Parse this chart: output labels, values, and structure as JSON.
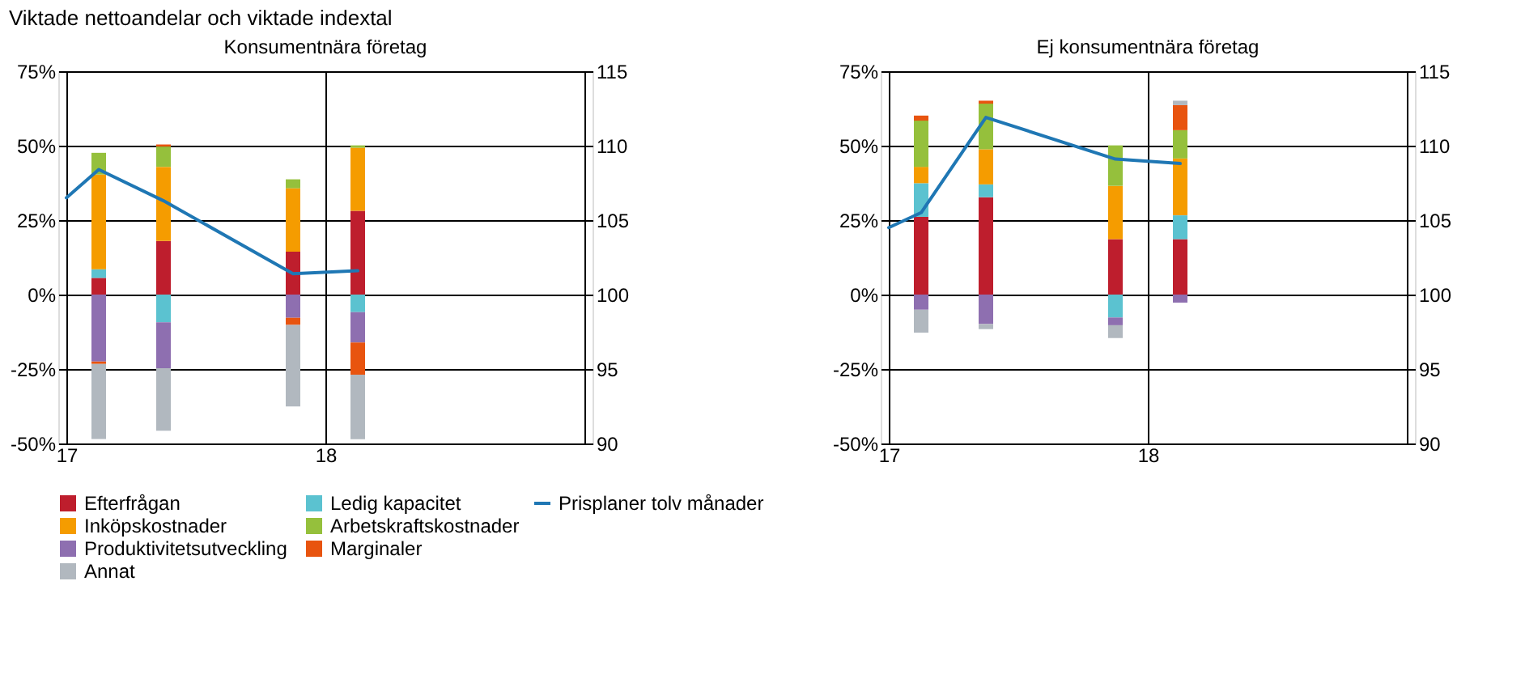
{
  "chart_data": [
    {
      "type": "bar",
      "title": "Konsumentnära företag",
      "subtitle": "Viktade nettoandelar och viktade indextal",
      "stacked": true,
      "x": [
        17.125,
        17.375,
        17.875,
        18.125
      ],
      "series": [
        {
          "name": "Prisplaner tolv månader",
          "type": "line",
          "axis": "y2",
          "color": "#1f77b4",
          "x": [
            17,
            17.125,
            17.375,
            17.875,
            18.125
          ],
          "values": [
            106.5,
            108.4,
            106.3,
            101.4,
            101.6
          ]
        },
        {
          "name": "Efterfrågan",
          "color": "#be1e2d",
          "values": [
            5.6,
            18.0,
            14.4,
            28.1
          ]
        },
        {
          "name": "Ledig kapacitet",
          "color": "#5bc2d0",
          "values": [
            2.9,
            -9.3,
            null,
            -5.9
          ]
        },
        {
          "name": "Inköpskostnader",
          "color": "#f59c00",
          "values": [
            31.8,
            24.9,
            21.3,
            21.2
          ]
        },
        {
          "name": "Arbetskraftskostnader",
          "color": "#95c03c",
          "values": [
            7.3,
            6.8,
            3.0,
            0.8
          ]
        },
        {
          "name": "Produktivitetsutveckling",
          "color": "#8e6fb0",
          "values": [
            -22.5,
            -15.4,
            -7.8,
            -10.2
          ]
        },
        {
          "name": "Marginaler",
          "color": "#e8540f",
          "values": [
            -0.8,
            0.7,
            -2.4,
            -10.8
          ]
        },
        {
          "name": "Annat",
          "color": "#b1b8bf",
          "values": [
            -25.2,
            -21.0,
            -27.4,
            -21.7
          ]
        }
      ],
      "xlim": [
        17,
        19
      ],
      "xticks": [
        17,
        18,
        {
          "value": 19,
          "label": null
        }
      ],
      "ylim": [
        -50,
        75
      ],
      "yticks": [
        {
          "value": -50,
          "label": "-50%"
        },
        {
          "value": -25,
          "label": "-25%"
        },
        {
          "value": 0,
          "label": "0%"
        },
        {
          "value": 25,
          "label": "25%"
        },
        {
          "value": 50,
          "label": "50%"
        },
        {
          "value": 75,
          "label": "75%"
        }
      ],
      "y2lim": [
        90,
        115
      ],
      "y2ticks": [
        90,
        95,
        100,
        105,
        110,
        115
      ],
      "grid": true,
      "legend": "bottom"
    },
    {
      "type": "bar",
      "title": "Ej konsumentnära företag",
      "stacked": true,
      "x": [
        17.125,
        17.375,
        17.875,
        18.125
      ],
      "series": [
        {
          "type": "line",
          "axis": "y2",
          "color": "#1f77b4",
          "x": [
            17,
            17.125,
            17.375,
            17.875,
            18.125
          ],
          "values": [
            104.5,
            105.5,
            111.9,
            109.1,
            108.8
          ]
        },
        {
          "color": "#be1e2d",
          "values": [
            26.1,
            32.7,
            18.6,
            18.6
          ]
        },
        {
          "color": "#5bc2d0",
          "values": [
            11.3,
            4.3,
            -7.7,
            8.0
          ]
        },
        {
          "color": "#f59c00",
          "values": [
            5.5,
            11.8,
            17.9,
            19.1
          ]
        },
        {
          "color": "#95c03c",
          "values": [
            15.5,
            15.3,
            13.6,
            9.5
          ]
        },
        {
          "color": "#8e6fb0",
          "values": [
            -5.1,
            -9.9,
            -2.6,
            -2.7
          ]
        },
        {
          "color": "#e8540f",
          "values": [
            1.7,
            1.0,
            null,
            8.4
          ]
        },
        {
          "color": "#b1b8bf",
          "values": [
            -7.7,
            -1.7,
            -4.3,
            1.5
          ]
        }
      ],
      "xlim": [
        17,
        19
      ],
      "xticks": [
        17,
        18,
        {
          "value": 19,
          "label": null
        }
      ],
      "ylim": [
        -50,
        75
      ],
      "yticks": [
        {
          "value": -50,
          "label": "-50%"
        },
        {
          "value": -25,
          "label": "-25%"
        },
        {
          "value": 0,
          "label": "0%"
        },
        {
          "value": 25,
          "label": "25%"
        },
        {
          "value": 50,
          "label": "50%"
        },
        {
          "value": 75,
          "label": "75%"
        }
      ],
      "y2lim": [
        90,
        115
      ],
      "y2ticks": [
        90,
        95,
        100,
        105,
        110,
        115
      ],
      "grid": true
    }
  ]
}
